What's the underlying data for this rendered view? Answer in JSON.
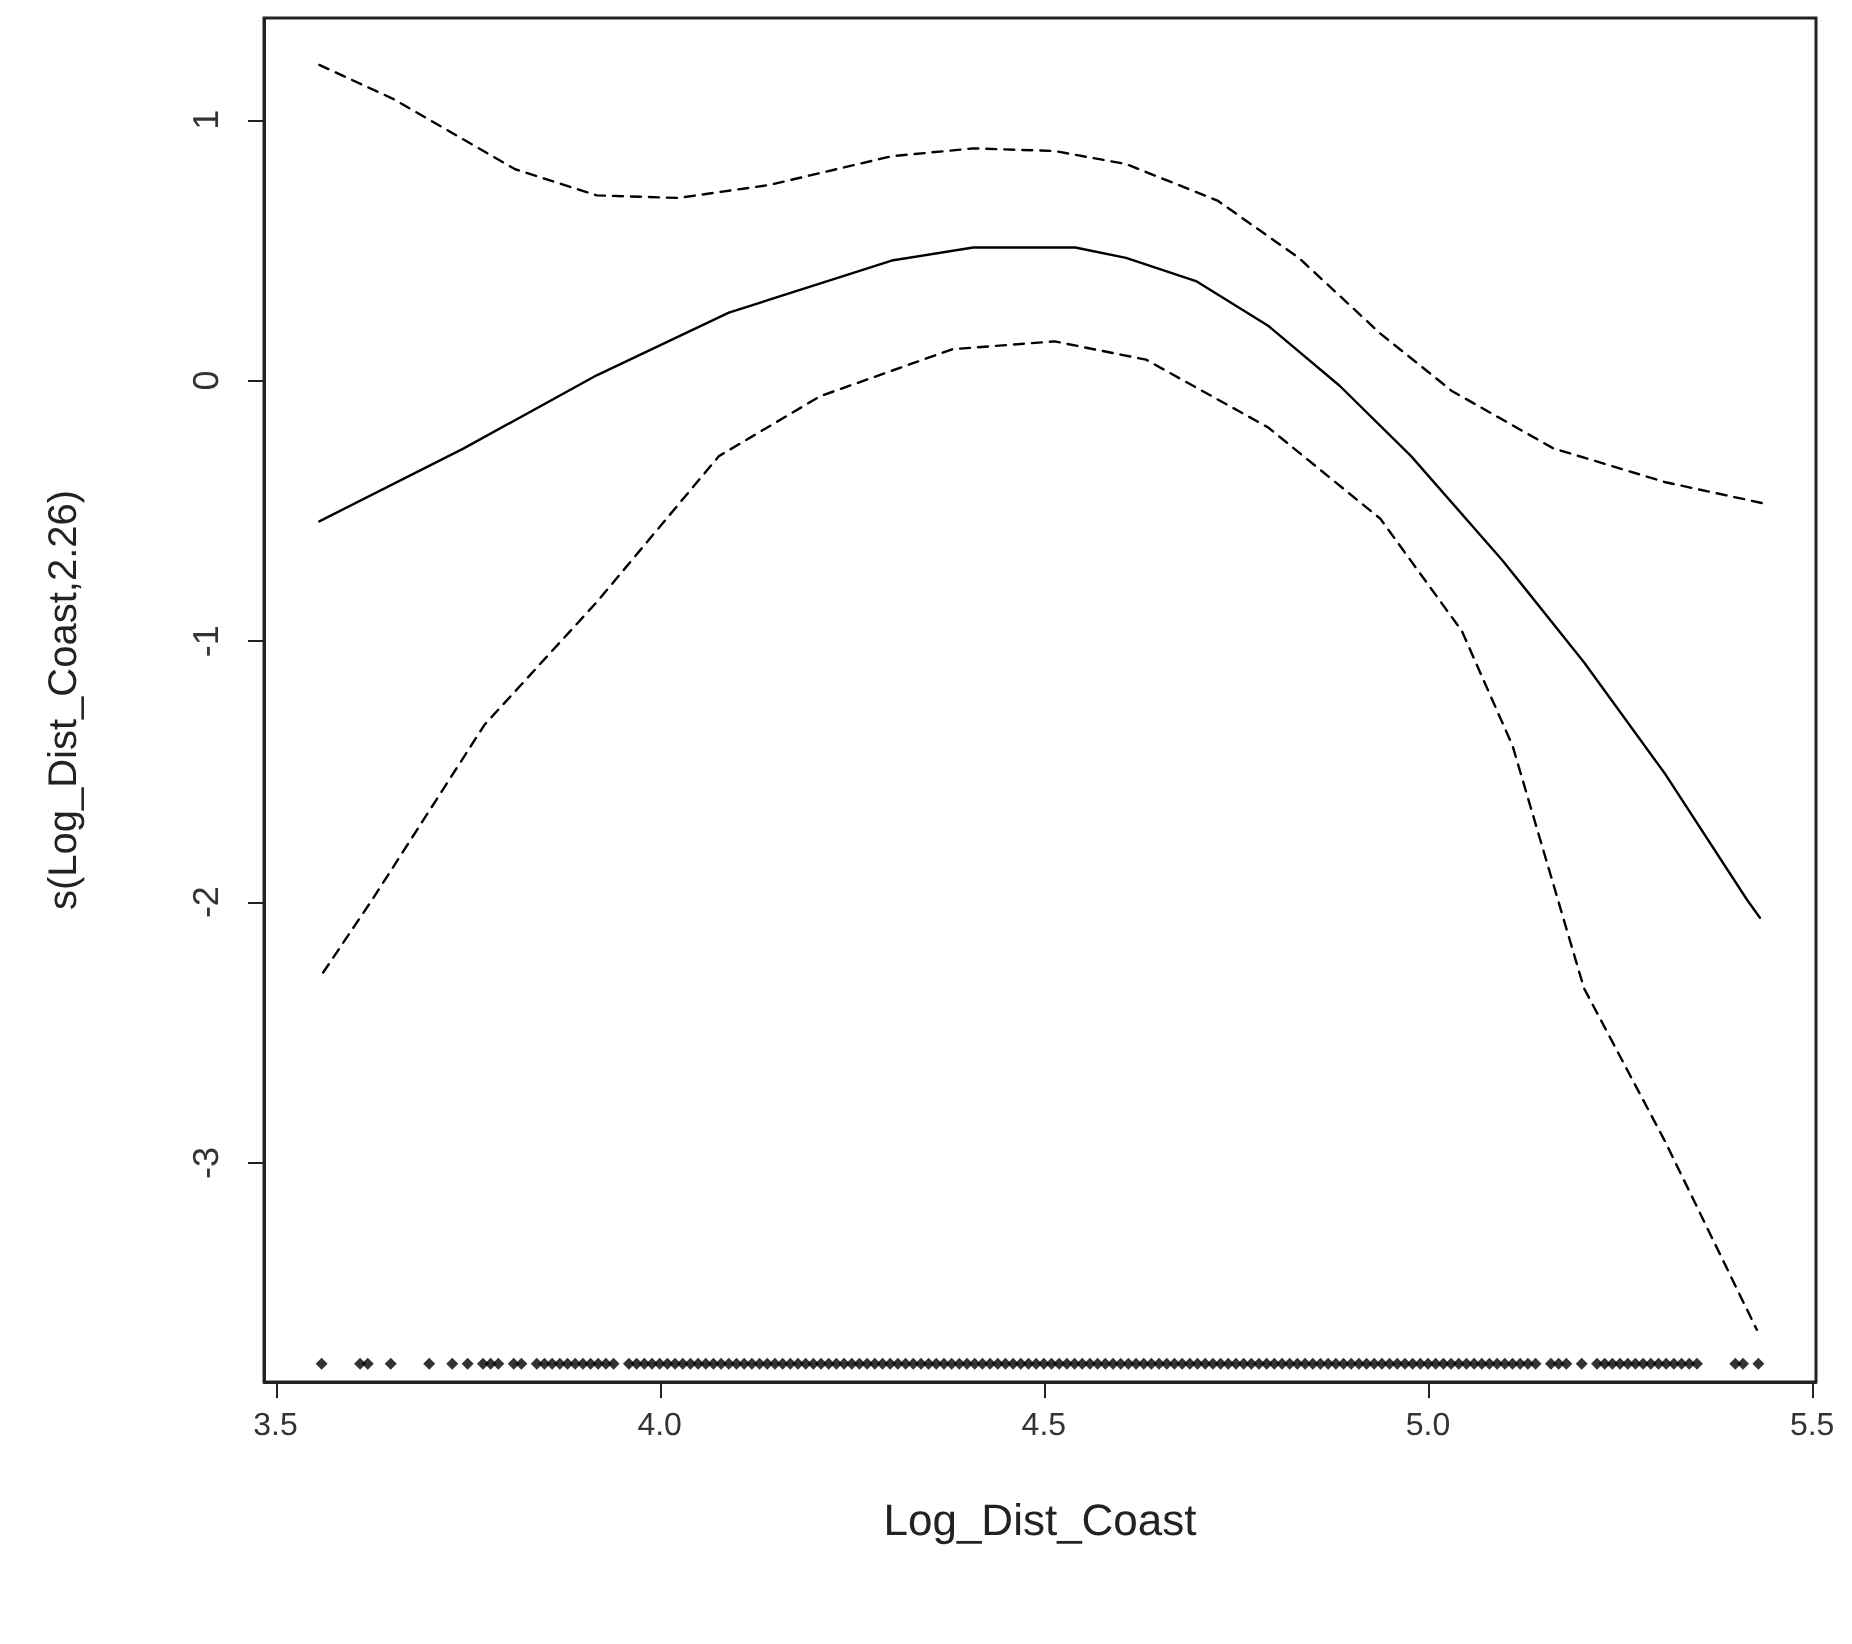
{
  "chart_data": {
    "type": "line",
    "xlabel": "Log_Dist_Coast",
    "ylabel": "s(Log_Dist_Coast,2.26)",
    "xlim": [
      3.485,
      5.505
    ],
    "ylim": [
      -3.84,
      1.39
    ],
    "xticks": [
      {
        "value": 3.5,
        "label": "3.5"
      },
      {
        "value": 4,
        "label": "4.0"
      },
      {
        "value": 4.5,
        "label": "4.5"
      },
      {
        "value": 5,
        "label": "5.0"
      },
      {
        "value": 5.5,
        "label": "5.5"
      }
    ],
    "yticks": [
      -3,
      -2,
      -1,
      0,
      1
    ],
    "grid": false,
    "marker": "none",
    "series": [
      {
        "color": "#000000",
        "line_style": "solid",
        "x": [
          3.557,
          3.745,
          3.918,
          4.09,
          4.302,
          4.408,
          4.541,
          4.607,
          4.699,
          4.792,
          4.885,
          4.978,
          5.097,
          5.203,
          5.309,
          5.415,
          5.432
        ],
        "values": [
          -0.54,
          -0.26,
          0.02,
          0.26,
          0.46,
          0.51,
          0.51,
          0.47,
          0.38,
          0.21,
          -0.02,
          -0.29,
          -0.69,
          -1.08,
          -1.51,
          -1.99,
          -2.06
        ]
      },
      {
        "color": "#000000",
        "line_style": "dashed",
        "x": [
          3.557,
          3.653,
          3.812,
          3.918,
          4.024,
          4.143,
          4.302,
          4.408,
          4.514,
          4.607,
          4.726,
          4.832,
          4.938,
          5.031,
          5.163,
          5.309,
          5.435
        ],
        "values": [
          1.21,
          1.08,
          0.81,
          0.71,
          0.7,
          0.75,
          0.86,
          0.89,
          0.88,
          0.83,
          0.69,
          0.47,
          0.18,
          -0.04,
          -0.26,
          -0.39,
          -0.47
        ]
      },
      {
        "color": "#000000",
        "line_style": "dashed",
        "x": [
          3.562,
          3.626,
          3.772,
          3.918,
          4.077,
          4.209,
          4.381,
          4.514,
          4.633,
          4.792,
          4.938,
          5.044,
          5.11,
          5.203,
          5.309,
          5.428
        ],
        "values": [
          -2.27,
          -1.99,
          -1.32,
          -0.85,
          -0.29,
          -0.06,
          0.12,
          0.15,
          0.08,
          -0.18,
          -0.53,
          -0.96,
          -1.4,
          -2.33,
          -2.92,
          -3.64
        ]
      },
      {
        "type": "scatter",
        "marker": "diamond",
        "color": "#000000",
        "x": [
          3.56,
          3.61,
          3.62,
          3.65,
          3.7,
          3.73,
          3.75,
          3.77,
          3.78,
          3.79,
          3.81,
          3.82,
          3.84,
          3.85,
          3.86,
          3.87,
          3.88,
          3.89,
          3.9,
          3.91,
          3.92,
          3.93,
          3.94,
          3.96,
          3.97,
          3.98,
          3.99,
          4.0,
          4.01,
          4.02,
          4.03,
          4.04,
          4.05,
          4.06,
          4.07,
          4.08,
          4.09,
          4.1,
          4.11,
          4.12,
          4.13,
          4.14,
          4.15,
          4.16,
          4.17,
          4.18,
          4.19,
          4.2,
          4.21,
          4.22,
          4.23,
          4.24,
          4.25,
          4.26,
          4.27,
          4.28,
          4.29,
          4.3,
          4.31,
          4.32,
          4.33,
          4.34,
          4.35,
          4.36,
          4.37,
          4.38,
          4.39,
          4.4,
          4.41,
          4.42,
          4.43,
          4.44,
          4.45,
          4.46,
          4.47,
          4.48,
          4.49,
          4.5,
          4.51,
          4.52,
          4.53,
          4.54,
          4.55,
          4.56,
          4.57,
          4.58,
          4.59,
          4.6,
          4.61,
          4.62,
          4.63,
          4.64,
          4.65,
          4.66,
          4.67,
          4.68,
          4.69,
          4.7,
          4.71,
          4.72,
          4.73,
          4.74,
          4.75,
          4.76,
          4.77,
          4.78,
          4.79,
          4.8,
          4.81,
          4.82,
          4.83,
          4.84,
          4.85,
          4.86,
          4.87,
          4.88,
          4.89,
          4.9,
          4.91,
          4.92,
          4.93,
          4.94,
          4.95,
          4.96,
          4.97,
          4.98,
          4.99,
          5.0,
          5.01,
          5.02,
          5.03,
          5.04,
          5.05,
          5.06,
          5.07,
          5.08,
          5.09,
          5.1,
          5.11,
          5.12,
          5.13,
          5.14,
          5.16,
          5.17,
          5.18,
          5.2,
          5.22,
          5.23,
          5.24,
          5.25,
          5.26,
          5.27,
          5.28,
          5.29,
          5.3,
          5.31,
          5.32,
          5.33,
          5.34,
          5.35,
          5.4,
          5.41,
          5.43
        ],
        "values": [
          -3.77,
          -3.77,
          -3.77,
          -3.77,
          -3.77,
          -3.77,
          -3.77,
          -3.77,
          -3.77,
          -3.77,
          -3.77,
          -3.77,
          -3.77,
          -3.77,
          -3.77,
          -3.77,
          -3.77,
          -3.77,
          -3.77,
          -3.77,
          -3.77,
          -3.77,
          -3.77,
          -3.77,
          -3.77,
          -3.77,
          -3.77,
          -3.77,
          -3.77,
          -3.77,
          -3.77,
          -3.77,
          -3.77,
          -3.77,
          -3.77,
          -3.77,
          -3.77,
          -3.77,
          -3.77,
          -3.77,
          -3.77,
          -3.77,
          -3.77,
          -3.77,
          -3.77,
          -3.77,
          -3.77,
          -3.77,
          -3.77,
          -3.77,
          -3.77,
          -3.77,
          -3.77,
          -3.77,
          -3.77,
          -3.77,
          -3.77,
          -3.77,
          -3.77,
          -3.77,
          -3.77,
          -3.77,
          -3.77,
          -3.77,
          -3.77,
          -3.77,
          -3.77,
          -3.77,
          -3.77,
          -3.77,
          -3.77,
          -3.77,
          -3.77,
          -3.77,
          -3.77,
          -3.77,
          -3.77,
          -3.77,
          -3.77,
          -3.77,
          -3.77,
          -3.77,
          -3.77,
          -3.77,
          -3.77,
          -3.77,
          -3.77,
          -3.77,
          -3.77,
          -3.77,
          -3.77,
          -3.77,
          -3.77,
          -3.77,
          -3.77,
          -3.77,
          -3.77,
          -3.77,
          -3.77,
          -3.77,
          -3.77,
          -3.77,
          -3.77,
          -3.77,
          -3.77,
          -3.77,
          -3.77,
          -3.77,
          -3.77,
          -3.77,
          -3.77,
          -3.77,
          -3.77,
          -3.77,
          -3.77,
          -3.77,
          -3.77,
          -3.77,
          -3.77,
          -3.77,
          -3.77,
          -3.77,
          -3.77,
          -3.77,
          -3.77,
          -3.77,
          -3.77,
          -3.77,
          -3.77,
          -3.77,
          -3.77,
          -3.77,
          -3.77,
          -3.77,
          -3.77,
          -3.77,
          -3.77,
          -3.77,
          -3.77,
          -3.77,
          -3.77,
          -3.77,
          -3.77,
          -3.77,
          -3.77,
          -3.77,
          -3.77,
          -3.77,
          -3.77,
          -3.77,
          -3.77,
          -3.77,
          -3.77,
          -3.77,
          -3.77,
          -3.77,
          -3.77,
          -3.77,
          -3.77,
          -3.77,
          -3.77,
          -3.77,
          -3.77
        ]
      }
    ]
  }
}
